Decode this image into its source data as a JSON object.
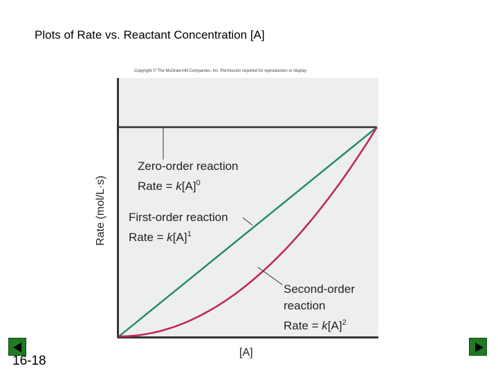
{
  "slide": {
    "title": "Plots of Rate vs. Reactant Concentration [A]",
    "copyright": "Copyright © The McGraw-Hill Companies, Inc. Permission required for reproduction or display",
    "number": "16-18"
  },
  "chart_data": {
    "type": "line",
    "title": "Plots of Rate vs. Reactant Concentration [A]",
    "xlabel": "[A]",
    "ylabel": "Rate (mol/L·s)",
    "xlim": [
      0,
      1
    ],
    "ylim": [
      0,
      1
    ],
    "grid": false,
    "series": [
      {
        "name": "Zero-order reaction",
        "equation": "Rate = k[A]0",
        "color": "#333333",
        "x": [
          0,
          1
        ],
        "y": [
          0.81,
          0.81
        ]
      },
      {
        "name": "First-order reaction",
        "equation": "Rate = k[A]1",
        "color": "#1e8a5a",
        "x": [
          0,
          1
        ],
        "y": [
          0,
          0.81
        ]
      },
      {
        "name": "Second-order reaction",
        "equation": "Rate = k[A]2",
        "color": "#c0285a",
        "x": [
          0,
          0.25,
          0.5,
          0.75,
          1
        ],
        "y": [
          0,
          0.05,
          0.2,
          0.456,
          0.81
        ]
      }
    ],
    "annotations": {
      "zero": {
        "line1": "Zero-order reaction",
        "rate": "Rate = ",
        "k": "k",
        "bracket": "[A]",
        "exp": "0"
      },
      "first": {
        "line1": "First-order reaction",
        "rate": "Rate = ",
        "k": "k",
        "bracket": "[A]",
        "exp": "1"
      },
      "second": {
        "line1": "Second-order",
        "line2": "reaction",
        "rate": "Rate = ",
        "k": "k",
        "bracket": "[A]",
        "exp": "2"
      }
    }
  },
  "nav": {
    "prev_icon": "previous-slide-icon",
    "next_icon": "next-slide-icon",
    "color": "#1f7a22"
  }
}
